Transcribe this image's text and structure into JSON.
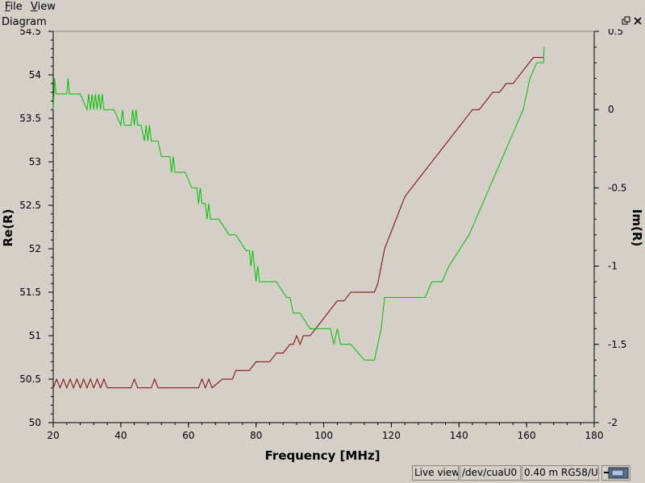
{
  "menubar": {
    "items": [
      {
        "label": "File"
      },
      {
        "label": "View"
      }
    ]
  },
  "dock": {
    "title": "Diagram"
  },
  "status": {
    "live": "Live view",
    "device": "/dev/cuaU0",
    "cable": "0.40 m RG58/U"
  },
  "icons": {
    "float": "float-window-icon",
    "close": "close-icon",
    "device": "analyzer-device-icon"
  },
  "colors": {
    "re": "#800000",
    "im": "#00c000",
    "plot_bg": "#d4d0c8"
  },
  "chart_data": {
    "type": "line",
    "xlabel": "Frequency [MHz]",
    "ylabel": "Re(R)",
    "y2label": "Im(R)",
    "xlim": [
      20,
      180
    ],
    "ylim": [
      50,
      54.5
    ],
    "y2lim": [
      -2,
      0.5
    ],
    "xticks": [
      20,
      40,
      60,
      80,
      100,
      120,
      140,
      160,
      180
    ],
    "yticks": [
      50,
      50.5,
      51,
      51.5,
      52,
      52.5,
      53,
      53.5,
      54,
      54.5
    ],
    "y2ticks": [
      -2,
      -1.5,
      -1,
      -0.5,
      0,
      0.5
    ],
    "grid": false,
    "series": [
      {
        "axis": "left",
        "color": "#800000",
        "x": [
          20,
          21,
          22,
          23,
          24,
          25,
          26,
          27,
          28,
          29,
          30,
          31,
          32,
          33,
          34,
          35,
          36,
          40,
          43,
          44,
          45,
          49,
          50,
          51,
          63,
          64,
          65,
          66,
          67,
          70,
          73,
          74,
          75,
          78,
          80,
          82,
          84,
          86,
          88,
          90,
          91,
          92,
          93,
          94,
          95,
          96,
          98,
          100,
          102,
          104,
          106,
          108,
          110,
          112,
          114,
          115,
          116,
          117,
          118,
          119,
          120,
          122,
          124,
          126,
          128,
          130,
          132,
          134,
          136,
          138,
          140,
          142,
          144,
          146,
          148,
          150,
          152,
          154,
          156,
          158,
          160,
          162,
          164,
          165
        ],
        "y": [
          50.4,
          50.5,
          50.4,
          50.5,
          50.4,
          50.5,
          50.4,
          50.5,
          50.4,
          50.5,
          50.4,
          50.5,
          50.4,
          50.5,
          50.4,
          50.5,
          50.4,
          50.4,
          50.4,
          50.5,
          50.4,
          50.4,
          50.5,
          50.4,
          50.4,
          50.5,
          50.4,
          50.5,
          50.4,
          50.5,
          50.5,
          50.6,
          50.6,
          50.6,
          50.7,
          50.7,
          50.7,
          50.8,
          50.8,
          50.9,
          50.9,
          51.0,
          50.9,
          51.0,
          51.0,
          51.0,
          51.1,
          51.2,
          51.3,
          51.4,
          51.4,
          51.5,
          51.5,
          51.5,
          51.5,
          51.5,
          51.6,
          51.8,
          52.0,
          52.1,
          52.2,
          52.4,
          52.6,
          52.7,
          52.8,
          52.9,
          53.0,
          53.1,
          53.2,
          53.3,
          53.4,
          53.5,
          53.6,
          53.6,
          53.7,
          53.8,
          53.8,
          53.9,
          53.9,
          54.0,
          54.1,
          54.2,
          54.2,
          54.2
        ]
      },
      {
        "axis": "right",
        "color": "#00c000",
        "x": [
          20,
          20.4,
          20.8,
          24,
          24.4,
          24.8,
          28,
          30,
          30.5,
          31,
          31.5,
          32,
          32.5,
          33,
          33.5,
          34,
          34.5,
          35,
          36,
          38,
          40,
          40.5,
          41,
          42,
          43,
          43.5,
          44,
          44.5,
          45,
          46,
          47,
          47.5,
          48,
          48.5,
          49,
          50,
          51,
          52,
          53,
          54,
          54.5,
          55,
          55.5,
          56,
          57,
          59,
          61,
          62,
          62.5,
          63,
          63.5,
          64,
          65,
          65.5,
          66,
          66.5,
          67,
          69,
          72,
          74,
          77,
          78,
          78.5,
          79,
          79.5,
          80,
          80.5,
          81,
          83,
          86,
          89,
          90,
          91,
          92,
          93,
          96,
          98,
          99,
          100,
          101,
          102,
          103,
          104,
          105,
          108,
          112,
          114,
          115,
          117,
          118,
          120,
          123,
          126,
          129,
          130,
          132,
          135,
          137,
          140,
          143,
          145,
          147,
          149,
          151,
          153,
          155,
          157,
          159,
          161,
          163,
          165,
          165.2
        ],
        "y": [
          0.0,
          0.2,
          0.1,
          0.1,
          0.2,
          0.1,
          0.1,
          0.0,
          0.1,
          0.0,
          0.1,
          0.0,
          0.1,
          0.0,
          0.1,
          0.0,
          0.1,
          0.0,
          0.0,
          0.0,
          -0.1,
          0.0,
          -0.1,
          -0.1,
          -0.1,
          0.0,
          -0.1,
          0.0,
          -0.1,
          -0.1,
          -0.2,
          -0.1,
          -0.2,
          -0.1,
          -0.2,
          -0.2,
          -0.2,
          -0.3,
          -0.3,
          -0.3,
          -0.3,
          -0.4,
          -0.3,
          -0.4,
          -0.4,
          -0.4,
          -0.5,
          -0.5,
          -0.5,
          -0.6,
          -0.5,
          -0.6,
          -0.6,
          -0.7,
          -0.6,
          -0.7,
          -0.7,
          -0.7,
          -0.8,
          -0.8,
          -0.9,
          -0.9,
          -1.0,
          -0.9,
          -1.0,
          -1.1,
          -1.0,
          -1.1,
          -1.1,
          -1.1,
          -1.2,
          -1.2,
          -1.3,
          -1.3,
          -1.3,
          -1.4,
          -1.4,
          -1.4,
          -1.4,
          -1.4,
          -1.4,
          -1.5,
          -1.4,
          -1.5,
          -1.5,
          -1.6,
          -1.6,
          -1.6,
          -1.4,
          -1.2,
          -1.2,
          -1.2,
          -1.2,
          -1.2,
          -1.2,
          -1.1,
          -1.1,
          -1.0,
          -0.9,
          -0.8,
          -0.7,
          -0.6,
          -0.5,
          -0.4,
          -0.3,
          -0.2,
          -0.1,
          0.0,
          0.2,
          0.3,
          0.3,
          0.4
        ]
      }
    ]
  }
}
